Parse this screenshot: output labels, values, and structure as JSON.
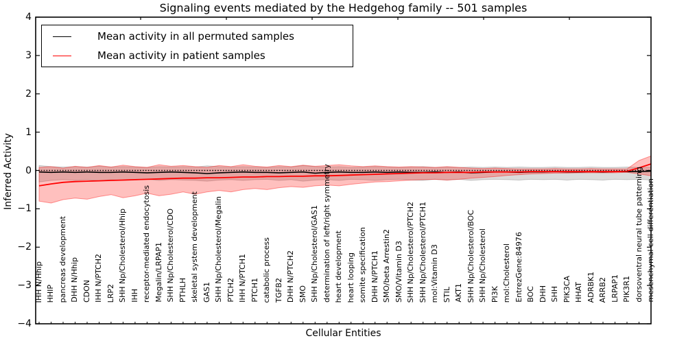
{
  "chart_data": {
    "type": "line",
    "title": "Signaling events mediated by the Hedgehog family -- 501 samples",
    "xlabel": "Cellular Entities",
    "ylabel": "Inferred Activity",
    "ylim": [
      -4,
      4
    ],
    "yticks": [
      4,
      3,
      2,
      1,
      0,
      -1,
      -2,
      -3,
      -4
    ],
    "grid": false,
    "legend_position": "upper left",
    "zero_line": {
      "value": 0,
      "style": "dotted",
      "color": "#000000"
    },
    "categories": [
      "IHH N/Hhip",
      "HHIP",
      "pancreas development",
      "DHH N/Hhip",
      "CDON",
      "IHH N/PTCH2",
      "LRP2",
      "SHH Np/Cholesterol/Hhip",
      "IHH",
      "receptor-mediated endocytosis",
      "Megalin/LRPAP1",
      "SHH Np/Cholesterol/CDO",
      "PTHLH",
      "skeletal system development",
      "GAS1",
      "SHH Np/Cholesterol/Megalin",
      "PTCH2",
      "IHH N/PTCH1",
      "PTCH1",
      "catabolic process",
      "TGFB2",
      "DHH N/PTCH2",
      "SMO",
      "SHH Np/Cholesterol/GAS1",
      "determination of left/right symmetry",
      "heart development",
      "heart looping",
      "somite specification",
      "DHH N/PTCH1",
      "SMO/beta Arrestin2",
      "SMO/Vitamin D3",
      "SHH Np/Cholesterol/PTCH2",
      "SHH Np/Cholesterol/PTCH1",
      "mol:Vitamin D3",
      "STIL",
      "AKT1",
      "SHH Np/Cholesterol/BOC",
      "SHH Np/Cholesterol",
      "PI3K",
      "mol:Cholesterol",
      "EntrezGene:84976",
      "BOC",
      "DHH",
      "SHH",
      "PIK3CA",
      "HHAT",
      "ADRBK1",
      "ARRB2",
      "LRPAP1",
      "PIK3R1",
      "dorsoventral neural tube patterning",
      "mesenchymal cell differentiation"
    ],
    "series": [
      {
        "name": "Mean activity in all permuted samples",
        "color": "#000000",
        "style": "solid",
        "values": [
          -0.04,
          -0.05,
          -0.04,
          -0.05,
          -0.04,
          -0.05,
          -0.05,
          -0.04,
          -0.05,
          -0.06,
          -0.05,
          -0.04,
          -0.05,
          -0.06,
          -0.08,
          -0.06,
          -0.05,
          -0.04,
          -0.05,
          -0.05,
          -0.06,
          -0.05,
          -0.04,
          -0.07,
          -0.05,
          -0.04,
          -0.05,
          -0.05,
          -0.04,
          -0.05,
          -0.04,
          -0.05,
          -0.05,
          -0.04,
          -0.05,
          -0.04,
          -0.06,
          -0.05,
          -0.04,
          -0.04,
          -0.05,
          -0.04,
          -0.04,
          -0.03,
          -0.04,
          -0.04,
          -0.03,
          -0.04,
          -0.03,
          -0.03,
          -0.03,
          -0.02
        ],
        "band": {
          "upper": [
            0.13,
            0.1,
            0.09,
            0.1,
            0.09,
            0.11,
            0.09,
            0.1,
            0.09,
            0.08,
            0.1,
            0.09,
            0.1,
            0.09,
            0.12,
            0.1,
            0.09,
            0.1,
            0.09,
            0.08,
            0.1,
            0.09,
            0.13,
            0.1,
            0.09,
            0.1,
            0.08,
            0.09,
            0.1,
            0.09,
            0.08,
            0.09,
            0.1,
            0.08,
            0.09,
            0.08,
            0.09,
            0.08,
            0.09,
            0.08,
            0.09,
            0.08,
            0.08,
            0.09,
            0.08,
            0.08,
            0.09,
            0.08,
            0.08,
            0.09,
            0.08,
            0.09
          ],
          "lower": [
            -0.3,
            -0.26,
            -0.24,
            -0.26,
            -0.24,
            -0.27,
            -0.24,
            -0.26,
            -0.25,
            -0.23,
            -0.26,
            -0.24,
            -0.25,
            -0.26,
            -0.28,
            -0.25,
            -0.24,
            -0.26,
            -0.24,
            -0.23,
            -0.26,
            -0.24,
            -0.28,
            -0.25,
            -0.24,
            -0.26,
            -0.23,
            -0.24,
            -0.26,
            -0.24,
            -0.23,
            -0.25,
            -0.26,
            -0.23,
            -0.25,
            -0.23,
            -0.26,
            -0.24,
            -0.23,
            -0.24,
            -0.25,
            -0.23,
            -0.24,
            -0.23,
            -0.25,
            -0.23,
            -0.24,
            -0.25,
            -0.23,
            -0.24,
            -0.23,
            -0.25
          ],
          "color": "rgba(90,90,90,0.22)",
          "edge_color": "rgba(0,0,0,0.18)"
        }
      },
      {
        "name": "Mean activity in patient samples",
        "color": "#ff0000",
        "style": "solid",
        "values": [
          -0.4,
          -0.35,
          -0.31,
          -0.29,
          -0.28,
          -0.27,
          -0.26,
          -0.25,
          -0.24,
          -0.23,
          -0.22,
          -0.21,
          -0.2,
          -0.2,
          -0.19,
          -0.19,
          -0.18,
          -0.17,
          -0.17,
          -0.16,
          -0.16,
          -0.15,
          -0.15,
          -0.14,
          -0.14,
          -0.13,
          -0.12,
          -0.11,
          -0.1,
          -0.09,
          -0.08,
          -0.07,
          -0.06,
          -0.06,
          -0.05,
          -0.05,
          -0.05,
          -0.04,
          -0.04,
          -0.04,
          -0.04,
          -0.03,
          -0.03,
          -0.03,
          -0.03,
          -0.03,
          -0.03,
          -0.03,
          -0.03,
          -0.02,
          0.07,
          0.17
        ],
        "band": {
          "upper": [
            0.08,
            0.1,
            0.06,
            0.11,
            0.08,
            0.13,
            0.09,
            0.14,
            0.1,
            0.08,
            0.15,
            0.11,
            0.13,
            0.1,
            0.08,
            0.13,
            0.1,
            0.15,
            0.11,
            0.09,
            0.13,
            0.1,
            0.14,
            0.11,
            0.13,
            0.15,
            0.12,
            0.1,
            0.12,
            0.1,
            0.09,
            0.1,
            0.09,
            0.08,
            0.1,
            0.08,
            0.06,
            0.05,
            0.06,
            0.05,
            0.04,
            0.04,
            0.04,
            0.05,
            0.04,
            0.04,
            0.05,
            0.04,
            0.04,
            0.04,
            0.26,
            0.38
          ],
          "lower": [
            -0.8,
            -0.85,
            -0.76,
            -0.72,
            -0.75,
            -0.68,
            -0.63,
            -0.71,
            -0.66,
            -0.59,
            -0.66,
            -0.62,
            -0.56,
            -0.62,
            -0.56,
            -0.52,
            -0.56,
            -0.5,
            -0.47,
            -0.5,
            -0.45,
            -0.42,
            -0.44,
            -0.4,
            -0.38,
            -0.4,
            -0.36,
            -0.33,
            -0.3,
            -0.29,
            -0.27,
            -0.25,
            -0.24,
            -0.23,
            -0.25,
            -0.23,
            -0.2,
            -0.18,
            -0.16,
            -0.13,
            -0.11,
            -0.09,
            -0.08,
            -0.07,
            -0.07,
            -0.06,
            -0.06,
            -0.06,
            -0.06,
            -0.05,
            -0.09,
            -0.14
          ],
          "color": "rgba(255,30,20,0.28)",
          "edge_color": "rgba(255,0,0,0.40)"
        }
      }
    ]
  },
  "legend": {
    "items": [
      {
        "label": "Mean activity in all permuted samples",
        "color": "#000000"
      },
      {
        "label": "Mean activity in patient samples",
        "color": "#ff0000"
      }
    ]
  }
}
